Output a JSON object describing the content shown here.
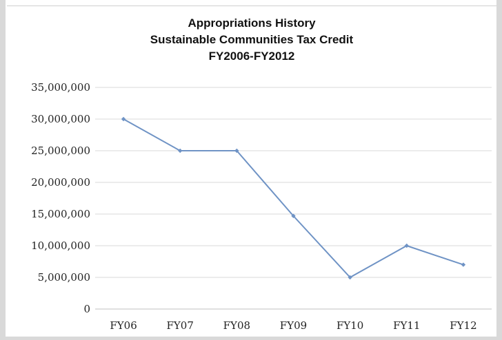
{
  "chart_data": {
    "type": "line",
    "title_lines": [
      "Appropriations History",
      "Sustainable Communities Tax Credit",
      "FY2006-FY2012"
    ],
    "categories": [
      "FY06",
      "FY07",
      "FY08",
      "FY09",
      "FY10",
      "FY11",
      "FY12"
    ],
    "series": [
      {
        "values": [
          30000000,
          25000000,
          25000000,
          14700000,
          5000000,
          10000000,
          7000000
        ]
      }
    ],
    "y_ticks": [
      "0",
      "5,000,000",
      "10,000,000",
      "15,000,000",
      "20,000,000",
      "25,000,000",
      "30,000,000",
      "35,000,000"
    ],
    "ylim": [
      0,
      35000000
    ],
    "grid": true,
    "legend": "none",
    "line_color": "#6f93c5",
    "grid_color": "#d9d9d9"
  }
}
